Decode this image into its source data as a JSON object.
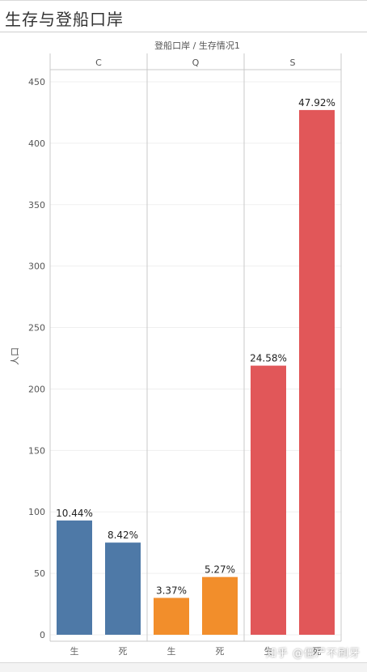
{
  "page": {
    "title": "生存与登船口岸"
  },
  "watermark": "知乎 @僵尸不刷牙",
  "chart_data": {
    "type": "bar",
    "header": "登船口岸 / 生存情况1",
    "ylabel": "人口",
    "ylim": [
      0,
      460
    ],
    "yticks": [
      0,
      50,
      100,
      150,
      200,
      250,
      300,
      350,
      400,
      450
    ],
    "grid": true,
    "groups": [
      {
        "name": "C",
        "color": "#4e79a7",
        "bars": [
          {
            "category": "生",
            "value": 93,
            "label": "10.44%"
          },
          {
            "category": "死",
            "value": 75,
            "label": "8.42%"
          }
        ]
      },
      {
        "name": "Q",
        "color": "#f28e2b",
        "bars": [
          {
            "category": "生",
            "value": 30,
            "label": "3.37%"
          },
          {
            "category": "死",
            "value": 47,
            "label": "5.27%"
          }
        ]
      },
      {
        "name": "S",
        "color": "#e15759",
        "bars": [
          {
            "category": "生",
            "value": 219,
            "label": "24.58%"
          },
          {
            "category": "死",
            "value": 427,
            "label": "47.92%"
          }
        ]
      }
    ]
  }
}
